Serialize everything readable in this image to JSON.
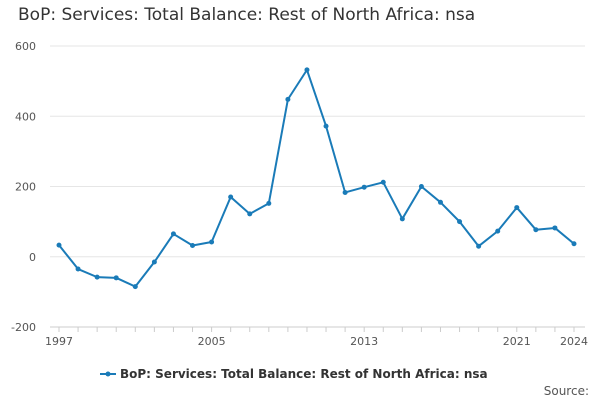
{
  "chart_data": {
    "type": "line",
    "title": "BoP: Services: Total Balance: Rest of North Africa: nsa",
    "xlabel": "",
    "ylabel": "",
    "x": [
      1997,
      1998,
      1999,
      2000,
      2001,
      2002,
      2003,
      2004,
      2005,
      2006,
      2007,
      2008,
      2009,
      2010,
      2011,
      2012,
      2013,
      2014,
      2015,
      2016,
      2017,
      2018,
      2019,
      2020,
      2021,
      2022,
      2023,
      2024
    ],
    "x_ticks": [
      1997,
      2005,
      2013,
      2021,
      2024
    ],
    "ylim": [
      -200,
      600
    ],
    "y_ticks": [
      -200,
      0,
      200,
      400,
      600
    ],
    "grid": true,
    "series": [
      {
        "name": "BoP: Services: Total Balance: Rest of North Africa: nsa",
        "color": "#1a7bb8",
        "values": [
          33,
          -35,
          -58,
          -60,
          -85,
          -15,
          65,
          32,
          42,
          170,
          122,
          152,
          448,
          532,
          372,
          183,
          198,
          212,
          108,
          200,
          155,
          100,
          30,
          73,
          140,
          77,
          82,
          37
        ]
      }
    ],
    "legend": {
      "position": "bottom"
    },
    "source_label": "Source:"
  }
}
